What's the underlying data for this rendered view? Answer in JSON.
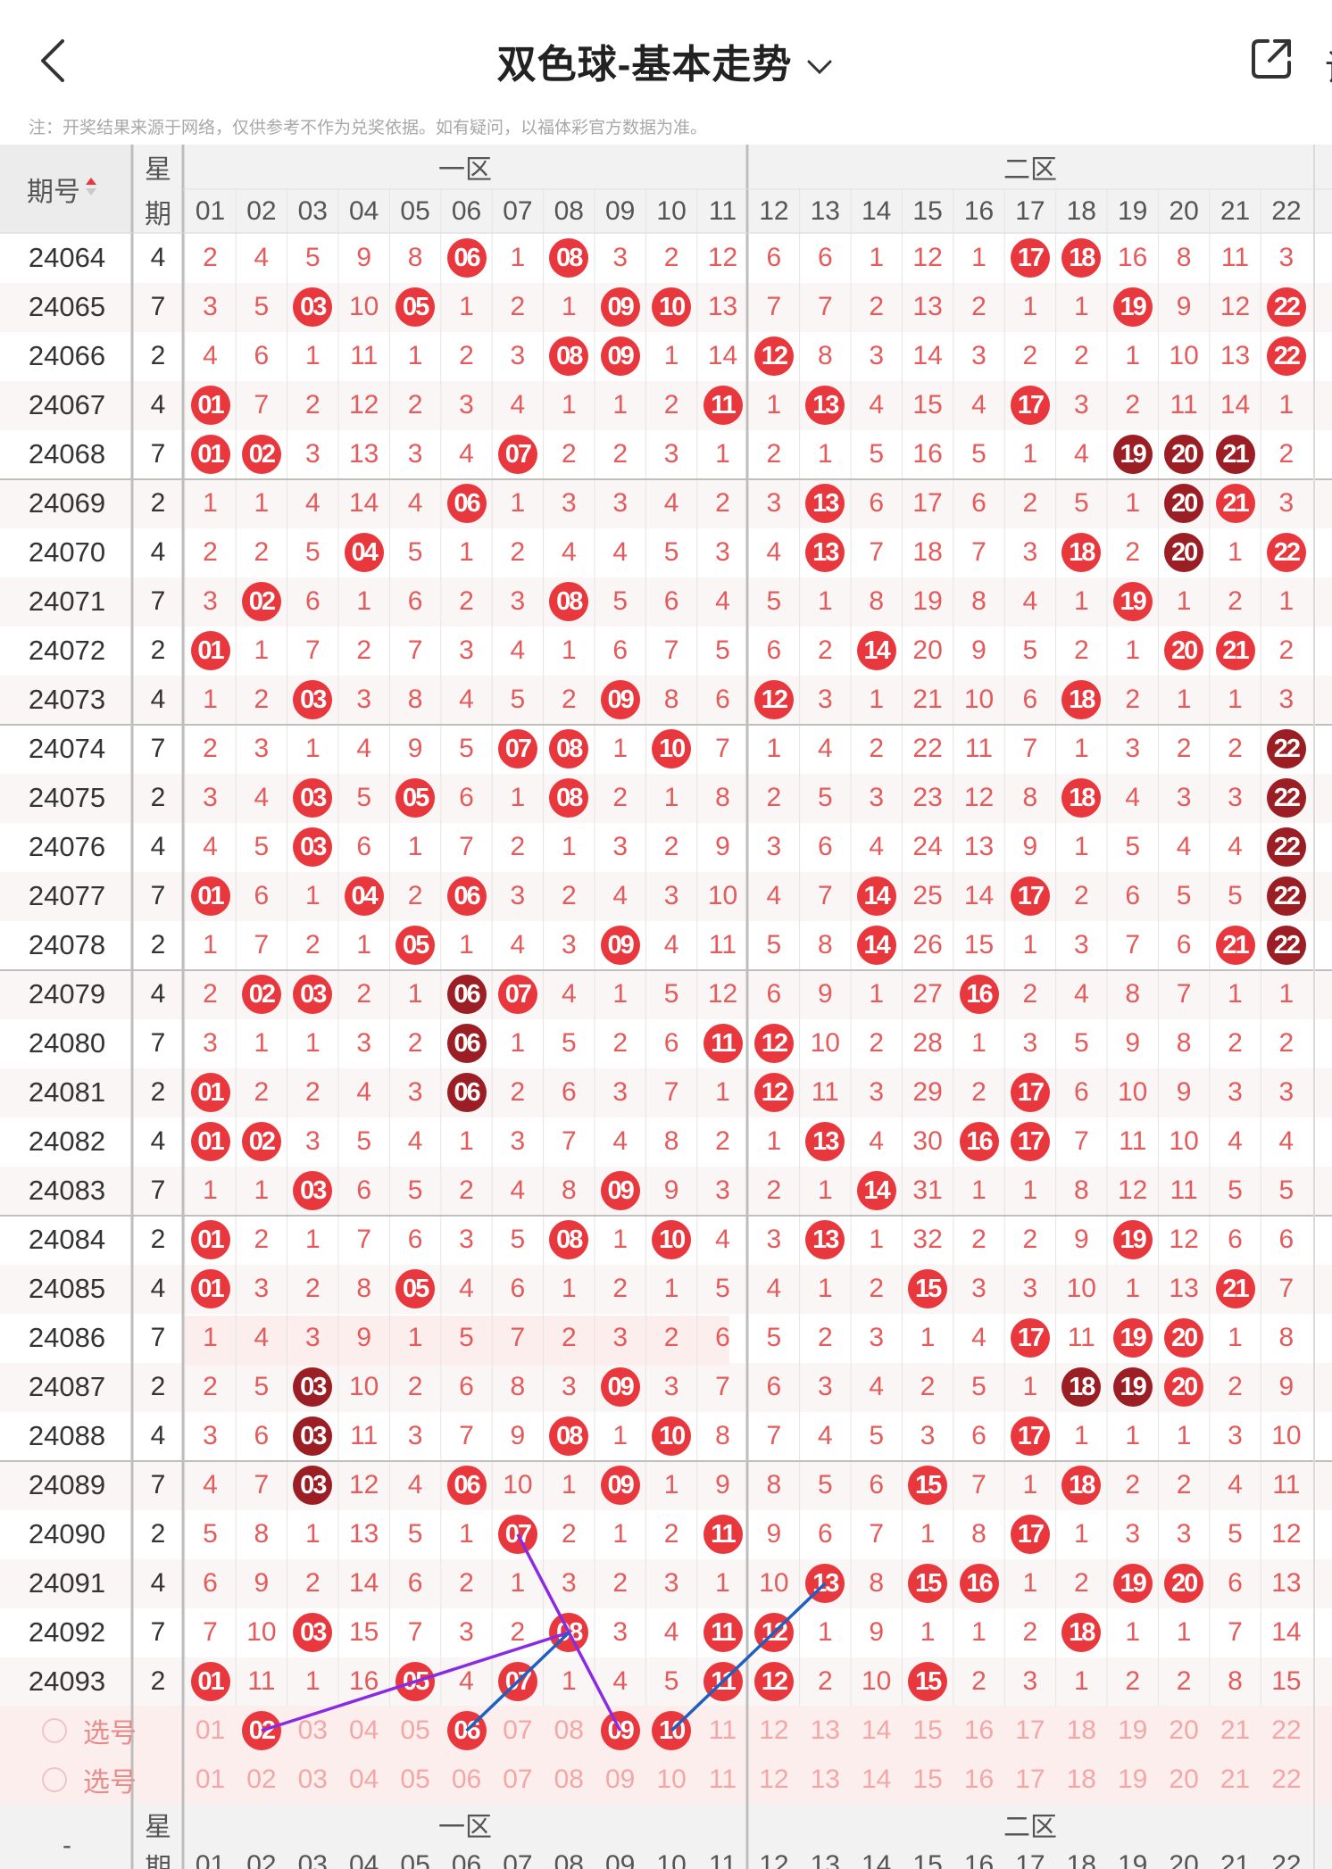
{
  "header": {
    "title": "双色球-基本走势",
    "edge_text": "设"
  },
  "note": "注：开奖结果来源于网络，仅供参考不作为兑奖依据。如有疑问，以福体彩官方数据为准。",
  "table": {
    "issue_header": "期号",
    "week_header_top": "星",
    "week_header_bottom": "期",
    "zone1": "一区",
    "zone2": "二区",
    "columns": [
      "01",
      "02",
      "03",
      "04",
      "05",
      "06",
      "07",
      "08",
      "09",
      "10",
      "11",
      "12",
      "13",
      "14",
      "15",
      "16",
      "17",
      "18",
      "19",
      "20",
      "21",
      "22"
    ],
    "rows": [
      {
        "issue": "24064",
        "week": "4",
        "cells": [
          "2",
          "4",
          "5",
          "9",
          "8",
          "06",
          "1",
          "08",
          "3",
          "2",
          "12",
          "6",
          "6",
          "1",
          "12",
          "1",
          "17",
          "18",
          "16",
          "8",
          "11",
          "3"
        ],
        "hits": [
          6,
          8,
          17,
          18
        ],
        "dark": []
      },
      {
        "issue": "24065",
        "week": "7",
        "cells": [
          "3",
          "5",
          "03",
          "10",
          "05",
          "1",
          "2",
          "1",
          "09",
          "10",
          "13",
          "7",
          "7",
          "2",
          "13",
          "2",
          "1",
          "1",
          "19",
          "9",
          "12",
          "22"
        ],
        "hits": [
          3,
          5,
          9,
          10,
          19,
          22
        ],
        "dark": []
      },
      {
        "issue": "24066",
        "week": "2",
        "cells": [
          "4",
          "6",
          "1",
          "11",
          "1",
          "2",
          "3",
          "08",
          "09",
          "1",
          "14",
          "12",
          "8",
          "3",
          "14",
          "3",
          "2",
          "2",
          "1",
          "10",
          "13",
          "22"
        ],
        "hits": [
          8,
          9,
          12,
          22
        ],
        "dark": []
      },
      {
        "issue": "24067",
        "week": "4",
        "cells": [
          "01",
          "7",
          "2",
          "12",
          "2",
          "3",
          "4",
          "1",
          "1",
          "2",
          "11",
          "1",
          "13",
          "4",
          "15",
          "4",
          "17",
          "3",
          "2",
          "11",
          "14",
          "1"
        ],
        "hits": [
          1,
          11,
          13,
          17
        ],
        "dark": []
      },
      {
        "issue": "24068",
        "week": "7",
        "cells": [
          "01",
          "02",
          "3",
          "13",
          "3",
          "4",
          "07",
          "2",
          "2",
          "3",
          "1",
          "2",
          "1",
          "5",
          "16",
          "5",
          "1",
          "4",
          "19",
          "20",
          "21",
          "2"
        ],
        "hits": [
          1,
          2,
          7
        ],
        "dark": [
          19,
          20,
          21
        ]
      },
      {
        "issue": "24069",
        "week": "2",
        "cells": [
          "1",
          "1",
          "4",
          "14",
          "4",
          "06",
          "1",
          "3",
          "3",
          "4",
          "2",
          "3",
          "13",
          "6",
          "17",
          "6",
          "2",
          "5",
          "1",
          "20",
          "21",
          "3"
        ],
        "hits": [
          6,
          13,
          21
        ],
        "dark": [
          20
        ]
      },
      {
        "issue": "24070",
        "week": "4",
        "cells": [
          "2",
          "2",
          "5",
          "04",
          "5",
          "1",
          "2",
          "4",
          "4",
          "5",
          "3",
          "4",
          "13",
          "7",
          "18",
          "7",
          "3",
          "18",
          "2",
          "20",
          "1",
          "22"
        ],
        "hits": [
          4,
          13,
          18,
          22
        ],
        "dark": [
          20
        ]
      },
      {
        "issue": "24071",
        "week": "7",
        "cells": [
          "3",
          "02",
          "6",
          "1",
          "6",
          "2",
          "3",
          "08",
          "5",
          "6",
          "4",
          "5",
          "1",
          "8",
          "19",
          "8",
          "4",
          "1",
          "19",
          "1",
          "2",
          "1"
        ],
        "hits": [
          2,
          8,
          19
        ],
        "dark": []
      },
      {
        "issue": "24072",
        "week": "2",
        "cells": [
          "01",
          "1",
          "7",
          "2",
          "7",
          "3",
          "4",
          "1",
          "6",
          "7",
          "5",
          "6",
          "2",
          "14",
          "20",
          "9",
          "5",
          "2",
          "1",
          "20",
          "21",
          "2"
        ],
        "hits": [
          1,
          14,
          20,
          21
        ],
        "dark": []
      },
      {
        "issue": "24073",
        "week": "4",
        "cells": [
          "1",
          "2",
          "03",
          "3",
          "8",
          "4",
          "5",
          "2",
          "09",
          "8",
          "6",
          "12",
          "3",
          "1",
          "21",
          "10",
          "6",
          "18",
          "2",
          "1",
          "1",
          "3"
        ],
        "hits": [
          3,
          9,
          12,
          18
        ],
        "dark": []
      },
      {
        "issue": "24074",
        "week": "7",
        "cells": [
          "2",
          "3",
          "1",
          "4",
          "9",
          "5",
          "07",
          "08",
          "1",
          "10",
          "7",
          "1",
          "4",
          "2",
          "22",
          "11",
          "7",
          "1",
          "3",
          "2",
          "2",
          "22"
        ],
        "hits": [
          7,
          8,
          10
        ],
        "dark": [
          22
        ]
      },
      {
        "issue": "24075",
        "week": "2",
        "cells": [
          "3",
          "4",
          "03",
          "5",
          "05",
          "6",
          "1",
          "08",
          "2",
          "1",
          "8",
          "2",
          "5",
          "3",
          "23",
          "12",
          "8",
          "18",
          "4",
          "3",
          "3",
          "22"
        ],
        "hits": [
          3,
          5,
          8,
          18
        ],
        "dark": [
          22
        ]
      },
      {
        "issue": "24076",
        "week": "4",
        "cells": [
          "4",
          "5",
          "03",
          "6",
          "1",
          "7",
          "2",
          "1",
          "3",
          "2",
          "9",
          "3",
          "6",
          "4",
          "24",
          "13",
          "9",
          "1",
          "5",
          "4",
          "4",
          "22"
        ],
        "hits": [
          3
        ],
        "dark": [
          22
        ]
      },
      {
        "issue": "24077",
        "week": "7",
        "cells": [
          "01",
          "6",
          "1",
          "04",
          "2",
          "06",
          "3",
          "2",
          "4",
          "3",
          "10",
          "4",
          "7",
          "14",
          "25",
          "14",
          "17",
          "2",
          "6",
          "5",
          "5",
          "22"
        ],
        "hits": [
          1,
          4,
          6,
          14,
          17
        ],
        "dark": [
          22
        ]
      },
      {
        "issue": "24078",
        "week": "2",
        "cells": [
          "1",
          "7",
          "2",
          "1",
          "05",
          "1",
          "4",
          "3",
          "09",
          "4",
          "11",
          "5",
          "8",
          "14",
          "26",
          "15",
          "1",
          "3",
          "7",
          "6",
          "21",
          "22"
        ],
        "hits": [
          5,
          9,
          14,
          21
        ],
        "dark": [
          22
        ]
      },
      {
        "issue": "24079",
        "week": "4",
        "cells": [
          "2",
          "02",
          "03",
          "2",
          "1",
          "06",
          "07",
          "4",
          "1",
          "5",
          "12",
          "6",
          "9",
          "1",
          "27",
          "16",
          "2",
          "4",
          "8",
          "7",
          "1",
          "1"
        ],
        "hits": [
          2,
          3,
          7,
          16
        ],
        "dark": [
          6
        ]
      },
      {
        "issue": "24080",
        "week": "7",
        "cells": [
          "3",
          "1",
          "1",
          "3",
          "2",
          "06",
          "1",
          "5",
          "2",
          "6",
          "11",
          "12",
          "10",
          "2",
          "28",
          "1",
          "3",
          "5",
          "9",
          "8",
          "2",
          "2"
        ],
        "hits": [
          11,
          12
        ],
        "dark": [
          6
        ]
      },
      {
        "issue": "24081",
        "week": "2",
        "cells": [
          "01",
          "2",
          "2",
          "4",
          "3",
          "06",
          "2",
          "6",
          "3",
          "7",
          "1",
          "12",
          "11",
          "3",
          "29",
          "2",
          "17",
          "6",
          "10",
          "9",
          "3",
          "3"
        ],
        "hits": [
          1,
          12,
          17
        ],
        "dark": [
          6
        ]
      },
      {
        "issue": "24082",
        "week": "4",
        "cells": [
          "01",
          "02",
          "3",
          "5",
          "4",
          "1",
          "3",
          "7",
          "4",
          "8",
          "2",
          "1",
          "13",
          "4",
          "30",
          "16",
          "17",
          "7",
          "11",
          "10",
          "4",
          "4"
        ],
        "hits": [
          1,
          2,
          13,
          16,
          17
        ],
        "dark": []
      },
      {
        "issue": "24083",
        "week": "7",
        "cells": [
          "1",
          "1",
          "03",
          "6",
          "5",
          "2",
          "4",
          "8",
          "09",
          "9",
          "3",
          "2",
          "1",
          "14",
          "31",
          "1",
          "1",
          "8",
          "12",
          "11",
          "5",
          "5"
        ],
        "hits": [
          3,
          9,
          14
        ],
        "dark": []
      },
      {
        "issue": "24084",
        "week": "2",
        "cells": [
          "01",
          "2",
          "1",
          "7",
          "6",
          "3",
          "5",
          "08",
          "1",
          "10",
          "4",
          "3",
          "13",
          "1",
          "32",
          "2",
          "2",
          "9",
          "19",
          "12",
          "6",
          "6"
        ],
        "hits": [
          1,
          8,
          10,
          13,
          19
        ],
        "dark": []
      },
      {
        "issue": "24085",
        "week": "4",
        "cells": [
          "01",
          "3",
          "2",
          "8",
          "05",
          "4",
          "6",
          "1",
          "2",
          "1",
          "5",
          "4",
          "1",
          "2",
          "15",
          "3",
          "3",
          "10",
          "1",
          "13",
          "21",
          "7"
        ],
        "hits": [
          1,
          5,
          15,
          21
        ],
        "dark": []
      },
      {
        "issue": "24086",
        "week": "7",
        "cells": [
          "1",
          "4",
          "3",
          "9",
          "1",
          "5",
          "7",
          "2",
          "3",
          "2",
          "6",
          "5",
          "2",
          "3",
          "1",
          "4",
          "17",
          "11",
          "19",
          "20",
          "1",
          "8"
        ],
        "hits": [
          17,
          19,
          20
        ],
        "dark": []
      },
      {
        "issue": "24087",
        "week": "2",
        "cells": [
          "2",
          "5",
          "03",
          "10",
          "2",
          "6",
          "8",
          "3",
          "09",
          "3",
          "7",
          "6",
          "3",
          "4",
          "2",
          "5",
          "1",
          "18",
          "19",
          "20",
          "2",
          "9"
        ],
        "hits": [
          9,
          20
        ],
        "dark": [
          3,
          18,
          19
        ]
      },
      {
        "issue": "24088",
        "week": "4",
        "cells": [
          "3",
          "6",
          "03",
          "11",
          "3",
          "7",
          "9",
          "08",
          "1",
          "10",
          "8",
          "7",
          "4",
          "5",
          "3",
          "6",
          "17",
          "1",
          "1",
          "1",
          "3",
          "10"
        ],
        "hits": [
          8,
          10,
          17
        ],
        "dark": [
          3
        ]
      },
      {
        "issue": "24089",
        "week": "7",
        "cells": [
          "4",
          "7",
          "03",
          "12",
          "4",
          "06",
          "10",
          "1",
          "09",
          "1",
          "9",
          "8",
          "5",
          "6",
          "15",
          "7",
          "1",
          "18",
          "2",
          "2",
          "4",
          "11"
        ],
        "hits": [
          6,
          9,
          15,
          18
        ],
        "dark": [
          3
        ]
      },
      {
        "issue": "24090",
        "week": "2",
        "cells": [
          "5",
          "8",
          "1",
          "13",
          "5",
          "1",
          "07",
          "2",
          "1",
          "2",
          "11",
          "9",
          "6",
          "7",
          "1",
          "8",
          "17",
          "1",
          "3",
          "3",
          "5",
          "12"
        ],
        "hits": [
          7,
          11,
          17
        ],
        "dark": []
      },
      {
        "issue": "24091",
        "week": "4",
        "cells": [
          "6",
          "9",
          "2",
          "14",
          "6",
          "2",
          "1",
          "3",
          "2",
          "3",
          "1",
          "10",
          "13",
          "8",
          "15",
          "16",
          "1",
          "2",
          "19",
          "20",
          "6",
          "13"
        ],
        "hits": [
          13,
          15,
          16,
          19,
          20
        ],
        "dark": []
      },
      {
        "issue": "24092",
        "week": "7",
        "cells": [
          "7",
          "10",
          "03",
          "15",
          "7",
          "3",
          "2",
          "08",
          "3",
          "4",
          "11",
          "12",
          "1",
          "9",
          "1",
          "1",
          "2",
          "18",
          "1",
          "1",
          "7",
          "14"
        ],
        "hits": [
          3,
          8,
          11,
          12,
          18
        ],
        "dark": []
      },
      {
        "issue": "24093",
        "week": "2",
        "cells": [
          "01",
          "11",
          "1",
          "16",
          "05",
          "4",
          "07",
          "1",
          "4",
          "5",
          "11",
          "12",
          "2",
          "10",
          "15",
          "2",
          "3",
          "1",
          "2",
          "2",
          "8",
          "15"
        ],
        "hits": [
          1,
          5,
          7,
          11,
          12,
          15
        ],
        "dark": []
      }
    ],
    "select_rows": [
      {
        "label": "选号",
        "selected": [
          2,
          6,
          9,
          10
        ]
      },
      {
        "label": "选号",
        "selected": []
      }
    ],
    "footer_dash": "-"
  },
  "colors": {
    "ball": "#e8383d",
    "ball_dark": "#9b1e24",
    "text_red": "#e45b5b",
    "line_purple": "#8a2be2",
    "line_blue": "#1f5fbf"
  }
}
